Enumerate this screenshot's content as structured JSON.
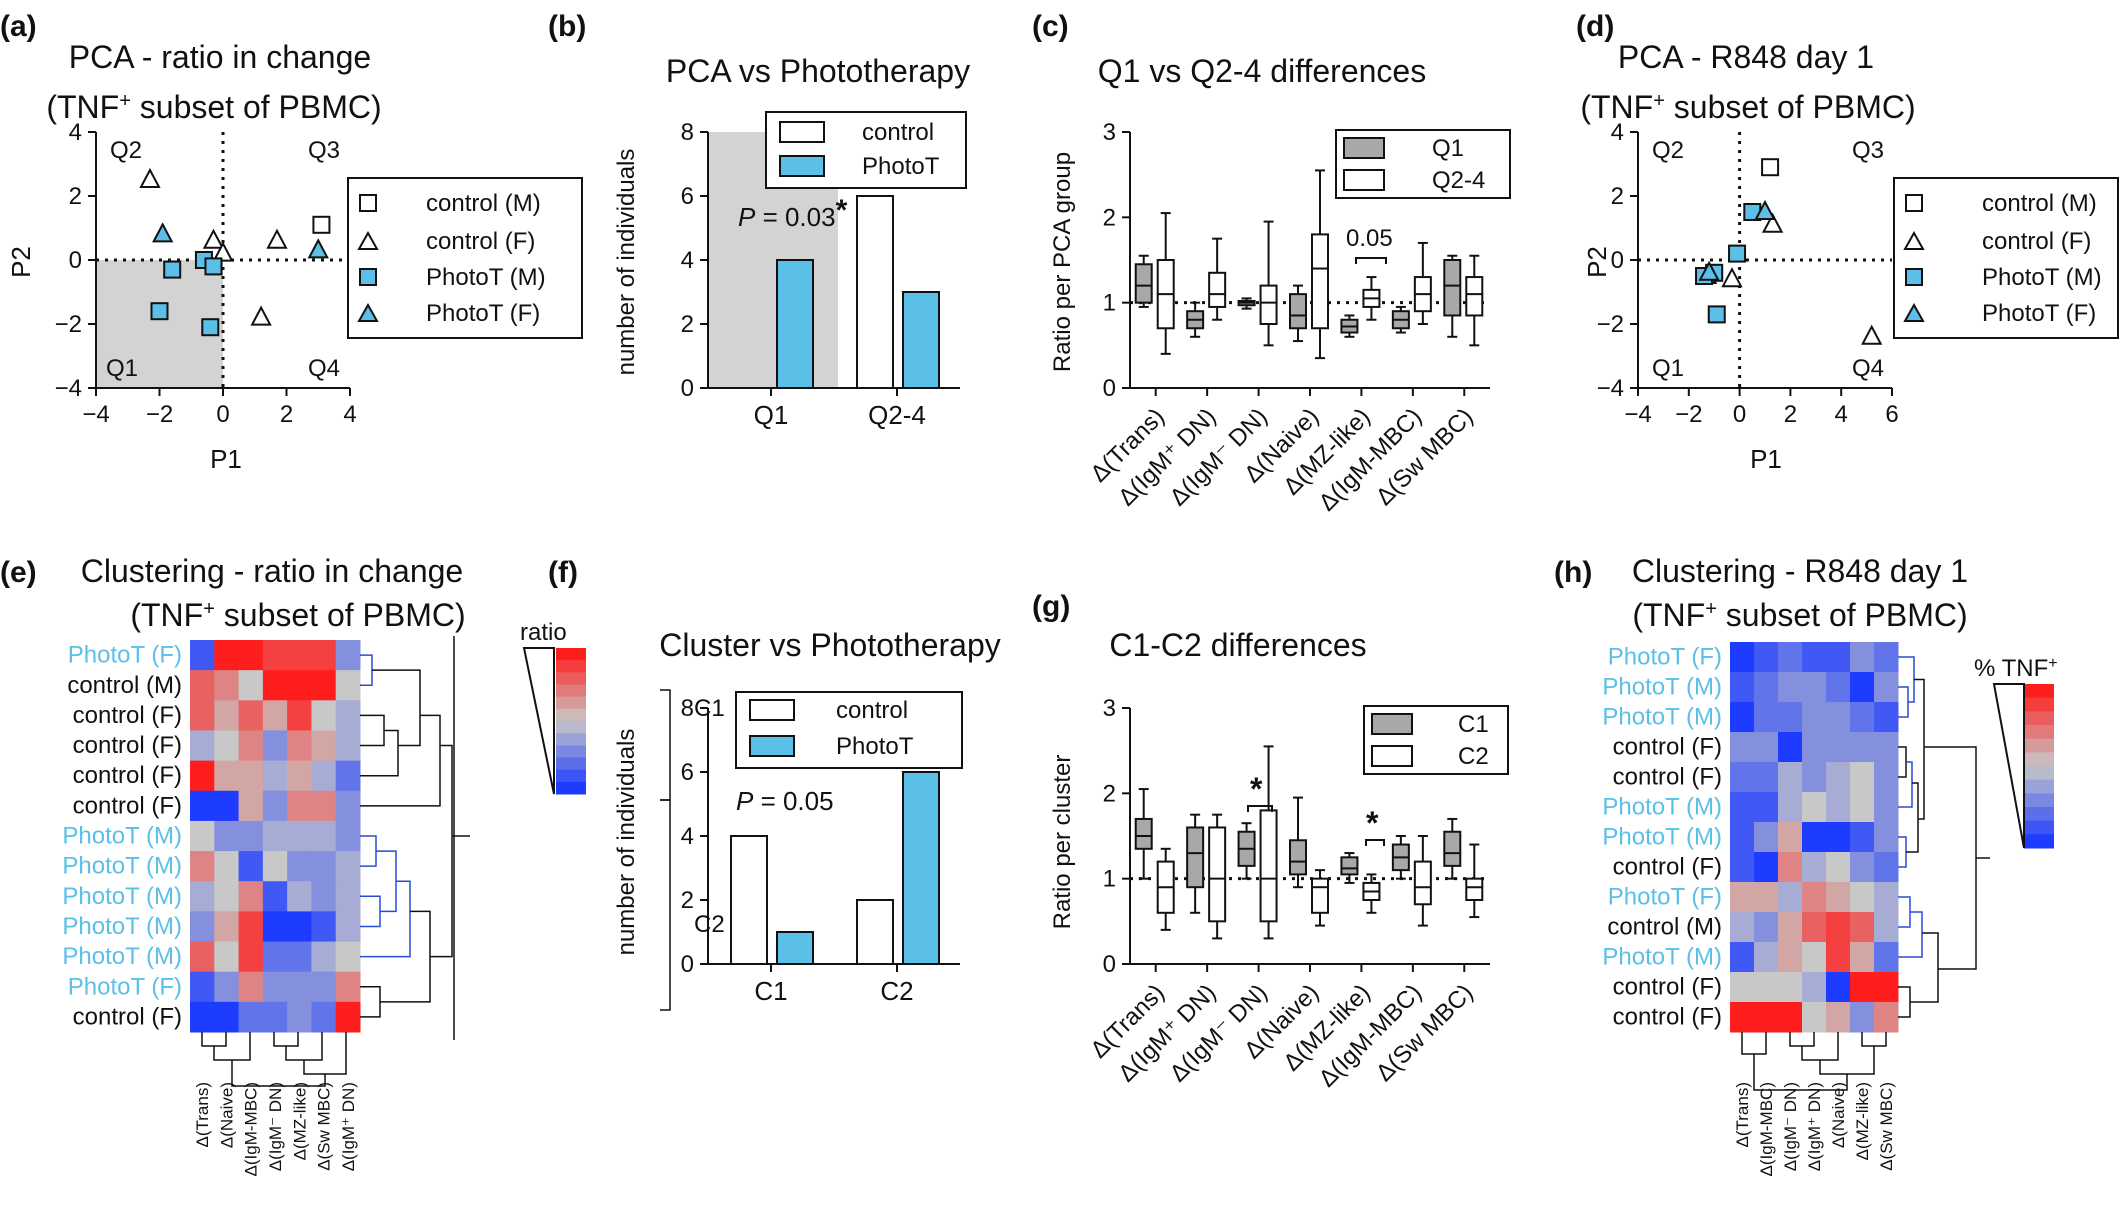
{
  "colors": {
    "photo": "#5bbfe8",
    "grey": "#a8a8a8",
    "shade": "#d3d3d3",
    "hot": "#ff1e1e",
    "cold": "#1e3cff",
    "mid": "#c8c8c8"
  },
  "panels": {
    "a": {
      "letter": "(a)",
      "title1": "PCA - ratio in change",
      "title2": "(TNF",
      "title2sup": "+",
      "title2end": " subset of PBMC)",
      "xlabel": "P1",
      "ylabel": "P2",
      "xticks": [
        "−4",
        "−2",
        "0",
        "2",
        "4"
      ],
      "yticks": [
        "4",
        "2",
        "0",
        "−2",
        "−4"
      ],
      "q": [
        "Q2",
        "Q3",
        "Q1",
        "Q4"
      ],
      "legend": [
        "control (M)",
        "control (F)",
        "PhotoT (M)",
        "PhotoT (F)"
      ]
    },
    "b": {
      "letter": "(b)",
      "title": "PCA vs Phototherapy",
      "ylabel": "number of individuals",
      "yticks": [
        "8",
        "6",
        "4",
        "2",
        "0"
      ],
      "legend": [
        "control",
        "PhotoT"
      ],
      "p_label": "P",
      "p_value": " = 0.03",
      "star": "*",
      "cats": [
        "Q1",
        "Q2-4"
      ]
    },
    "c": {
      "letter": "(c)",
      "title": "Q1 vs Q2-4 differences",
      "ylabel": "Ratio per PCA group",
      "yticks": [
        "3",
        "2",
        "1",
        "0"
      ],
      "legend": [
        "Q1",
        "Q2-4"
      ],
      "note": "0.05"
    },
    "d": {
      "letter": "(d)",
      "title1": "PCA - R848 day 1",
      "title2": "(TNF",
      "title2sup": "+",
      "title2end": " subset of PBMC)",
      "xlabel": "P1",
      "ylabel": "P2",
      "xticks": [
        "−4",
        "−2",
        "0",
        "2",
        "4",
        "6"
      ],
      "yticks": [
        "4",
        "2",
        "0",
        "−2",
        "−4"
      ],
      "q": [
        "Q2",
        "Q3",
        "Q1",
        "Q4"
      ],
      "legend": [
        "control (M)",
        "control (F)",
        "PhotoT (M)",
        "PhotoT (F)"
      ]
    },
    "e": {
      "letter": "(e)",
      "title1": "Clustering - ratio in change",
      "title2": "(TNF",
      "title2sup": "+",
      "title2end": " subset of PBMC)",
      "scale_label": "ratio",
      "rows": [
        "PhotoT (F)",
        "control (M)",
        "control (F)",
        "control (F)",
        "control (F)",
        "control (F)",
        "PhotoT (M)",
        "PhotoT (M)",
        "PhotoT (M)",
        "PhotoT (M)",
        "PhotoT (M)",
        "PhotoT (F)",
        "control (F)"
      ],
      "cols": [
        "Δ(Trans)",
        "Δ(Naive)",
        "Δ(IgM-MBC)",
        "Δ(IgM⁻ DN)",
        "Δ(MZ-like)",
        "Δ(Sw MBC)",
        "Δ(IgM⁺ DN)"
      ],
      "clusters": [
        "C1",
        "C2"
      ]
    },
    "f": {
      "letter": "(f)",
      "title": "Cluster vs Phototherapy",
      "ylabel": "number of individuals",
      "yticks": [
        "8",
        "6",
        "4",
        "2",
        "0"
      ],
      "legend": [
        "control",
        "PhotoT"
      ],
      "p_label": "P",
      "p_value": " = 0.05",
      "cats": [
        "C1",
        "C2"
      ]
    },
    "g": {
      "letter": "(g)",
      "title": "C1-C2 differences",
      "ylabel": "Ratio per cluster",
      "yticks": [
        "3",
        "2",
        "1",
        "0"
      ],
      "legend": [
        "C1",
        "C2"
      ],
      "star": "*"
    },
    "h": {
      "letter": "(h)",
      "title1": "Clustering - R848 day 1",
      "title2": "(TNF",
      "title2sup": "+",
      "title2end": " subset of PBMC)",
      "scale_label": "% TNF",
      "scale_sup": "+",
      "rows": [
        "PhotoT (F)",
        "PhotoT (M)",
        "PhotoT (M)",
        "control (F)",
        "control (F)",
        "PhotoT (M)",
        "PhotoT (M)",
        "control (F)",
        "PhotoT (F)",
        "control (M)",
        "PhotoT (M)",
        "control (F)",
        "control (F)"
      ],
      "cols": [
        "Δ(Trans)",
        "Δ(IgM-MBC)",
        "Δ(IgM⁻ DN)",
        "Δ(IgM⁺ DN)",
        "Δ(Naive)",
        "Δ(MZ-like)",
        "Δ(Sw MBC)"
      ]
    }
  },
  "box_categories": [
    "Δ(Trans)",
    "Δ(IgM⁺ DN)",
    "Δ(IgM⁻ DN)",
    "Δ(Naive)",
    "Δ(MZ-like)",
    "Δ(IgM-MBC)",
    "Δ(Sw MBC)"
  ],
  "chart_data": [
    {
      "panel": "a",
      "type": "scatter",
      "xlim": [
        -4,
        4
      ],
      "ylim": [
        -4,
        4
      ],
      "series": [
        {
          "name": "control (M)",
          "marker": "square-open",
          "points": [
            [
              3.1,
              1.1
            ]
          ]
        },
        {
          "name": "control (F)",
          "marker": "triangle-open",
          "points": [
            [
              -2.3,
              2.5
            ],
            [
              -0.3,
              0.6
            ],
            [
              0,
              0.2
            ],
            [
              1.7,
              0.6
            ],
            [
              1.2,
              -1.8
            ]
          ]
        },
        {
          "name": "PhotoT (M)",
          "marker": "square-filled",
          "points": [
            [
              -0.6,
              0
            ],
            [
              -1.6,
              -0.3
            ],
            [
              -0.3,
              -0.2
            ],
            [
              -2.0,
              -1.6
            ],
            [
              -0.4,
              -2.1
            ]
          ]
        },
        {
          "name": "PhotoT (F)",
          "marker": "triangle-filled",
          "points": [
            [
              -1.9,
              0.8
            ],
            [
              3.0,
              0.3
            ]
          ]
        }
      ]
    },
    {
      "panel": "b",
      "type": "bar",
      "categories": [
        "Q1",
        "Q2-4"
      ],
      "ylim": [
        0,
        8
      ],
      "series": [
        {
          "name": "control",
          "values": [
            0,
            6
          ]
        },
        {
          "name": "PhotoT",
          "values": [
            4,
            3
          ]
        }
      ]
    },
    {
      "panel": "c",
      "type": "box",
      "ylim": [
        0,
        3
      ],
      "categories": [
        "Δ(Trans)",
        "Δ(IgM⁺ DN)",
        "Δ(IgM⁻ DN)",
        "Δ(Naive)",
        "Δ(MZ-like)",
        "Δ(IgM-MBC)",
        "Δ(Sw MBC)"
      ],
      "series": [
        {
          "name": "Q1",
          "boxes": [
            [
              0.95,
              1.0,
              1.2,
              1.45,
              1.55
            ],
            [
              0.6,
              0.7,
              0.8,
              0.9,
              1.0
            ],
            [
              0.93,
              0.97,
              1.0,
              1.02,
              1.05
            ],
            [
              0.55,
              0.7,
              0.85,
              1.1,
              1.2
            ],
            [
              0.6,
              0.65,
              0.72,
              0.8,
              0.85
            ],
            [
              0.65,
              0.7,
              0.8,
              0.9,
              0.95
            ],
            [
              0.6,
              0.85,
              1.2,
              1.5,
              1.55
            ]
          ]
        },
        {
          "name": "Q2-4",
          "boxes": [
            [
              0.4,
              0.7,
              1.1,
              1.5,
              2.05
            ],
            [
              0.8,
              0.95,
              1.1,
              1.35,
              1.75
            ],
            [
              0.5,
              0.75,
              1.0,
              1.2,
              1.95
            ],
            [
              0.35,
              0.7,
              1.4,
              1.8,
              2.55
            ],
            [
              0.8,
              0.95,
              1.05,
              1.15,
              1.3
            ],
            [
              0.75,
              0.9,
              1.1,
              1.3,
              1.7
            ],
            [
              0.5,
              0.85,
              1.1,
              1.3,
              1.55
            ]
          ]
        }
      ]
    },
    {
      "panel": "d",
      "type": "scatter",
      "xlim": [
        -4,
        6
      ],
      "ylim": [
        -4,
        4
      ],
      "series": [
        {
          "name": "control (M)",
          "marker": "square-open",
          "points": [
            [
              1.2,
              2.9
            ]
          ]
        },
        {
          "name": "control (F)",
          "marker": "triangle-open",
          "points": [
            [
              1.3,
              1.1
            ],
            [
              -0.3,
              -0.6
            ],
            [
              -1.3,
              -0.5
            ],
            [
              5.2,
              -2.4
            ]
          ]
        },
        {
          "name": "PhotoT (M)",
          "marker": "square-filled",
          "points": [
            [
              0.5,
              1.5
            ],
            [
              -0.1,
              0.2
            ],
            [
              -1.0,
              -0.4
            ],
            [
              -1.4,
              -0.5
            ],
            [
              -0.9,
              -1.7
            ]
          ]
        },
        {
          "name": "PhotoT (F)",
          "marker": "triangle-filled",
          "points": [
            [
              1.0,
              1.5
            ],
            [
              -1.2,
              -0.4
            ]
          ]
        }
      ]
    },
    {
      "panel": "e",
      "type": "heatmap",
      "rows": 13,
      "cols": 7,
      "values": [
        [
          0.1,
          1.0,
          1.0,
          0.9,
          0.9,
          0.9,
          0.3
        ],
        [
          0.8,
          0.7,
          0.5,
          1.0,
          1.0,
          1.0,
          0.5
        ],
        [
          0.8,
          0.6,
          0.8,
          0.6,
          0.9,
          0.5,
          0.4
        ],
        [
          0.4,
          0.5,
          0.7,
          0.3,
          0.7,
          0.6,
          0.4
        ],
        [
          1.0,
          0.6,
          0.6,
          0.4,
          0.6,
          0.4,
          0.2
        ],
        [
          0.0,
          0.0,
          0.6,
          0.3,
          0.7,
          0.7,
          0.3
        ],
        [
          0.5,
          0.3,
          0.3,
          0.4,
          0.4,
          0.4,
          0.3
        ],
        [
          0.7,
          0.5,
          0.1,
          0.5,
          0.3,
          0.3,
          0.4
        ],
        [
          0.4,
          0.5,
          0.7,
          0.1,
          0.4,
          0.3,
          0.4
        ],
        [
          0.3,
          0.6,
          0.9,
          0.0,
          0.0,
          0.1,
          0.4
        ],
        [
          0.8,
          0.5,
          0.9,
          0.2,
          0.2,
          0.4,
          0.5
        ],
        [
          0.1,
          0.3,
          0.7,
          0.3,
          0.3,
          0.3,
          0.7
        ],
        [
          0.0,
          0.0,
          0.2,
          0.2,
          0.3,
          0.2,
          1.0
        ]
      ]
    },
    {
      "panel": "f",
      "type": "bar",
      "categories": [
        "C1",
        "C2"
      ],
      "ylim": [
        0,
        8
      ],
      "series": [
        {
          "name": "control",
          "values": [
            4,
            2
          ]
        },
        {
          "name": "PhotoT",
          "values": [
            1,
            6
          ]
        }
      ]
    },
    {
      "panel": "g",
      "type": "box",
      "ylim": [
        0,
        3
      ],
      "categories": [
        "Δ(Trans)",
        "Δ(IgM⁺ DN)",
        "Δ(IgM⁻ DN)",
        "Δ(Naive)",
        "Δ(MZ-like)",
        "Δ(IgM-MBC)",
        "Δ(Sw MBC)"
      ],
      "series": [
        {
          "name": "C1",
          "boxes": [
            [
              1.0,
              1.35,
              1.5,
              1.7,
              2.05
            ],
            [
              0.6,
              0.9,
              1.3,
              1.6,
              1.75
            ],
            [
              1.0,
              1.15,
              1.35,
              1.55,
              1.65
            ],
            [
              0.9,
              1.05,
              1.2,
              1.45,
              1.95
            ],
            [
              0.95,
              1.05,
              1.12,
              1.25,
              1.3
            ],
            [
              1.0,
              1.1,
              1.25,
              1.4,
              1.5
            ],
            [
              1.0,
              1.15,
              1.3,
              1.55,
              1.7
            ]
          ]
        },
        {
          "name": "C2",
          "boxes": [
            [
              0.4,
              0.6,
              0.9,
              1.2,
              1.35
            ],
            [
              0.3,
              0.5,
              1.0,
              1.6,
              1.75
            ],
            [
              0.3,
              0.5,
              1.0,
              1.8,
              2.55
            ],
            [
              0.45,
              0.6,
              0.9,
              1.0,
              1.1
            ],
            [
              0.6,
              0.75,
              0.85,
              0.95,
              1.05
            ],
            [
              0.45,
              0.7,
              0.9,
              1.2,
              1.5
            ],
            [
              0.55,
              0.75,
              0.9,
              1.0,
              1.4
            ]
          ]
        }
      ]
    },
    {
      "panel": "h",
      "type": "heatmap",
      "rows": 13,
      "cols": 7,
      "values": [
        [
          0.0,
          0.1,
          0.2,
          0.1,
          0.1,
          0.3,
          0.2
        ],
        [
          0.1,
          0.2,
          0.3,
          0.3,
          0.2,
          0.0,
          0.3
        ],
        [
          0.0,
          0.2,
          0.2,
          0.3,
          0.3,
          0.2,
          0.1
        ],
        [
          0.3,
          0.3,
          0.0,
          0.3,
          0.3,
          0.3,
          0.3
        ],
        [
          0.2,
          0.2,
          0.4,
          0.3,
          0.4,
          0.5,
          0.3
        ],
        [
          0.1,
          0.1,
          0.4,
          0.5,
          0.4,
          0.5,
          0.3
        ],
        [
          0.1,
          0.3,
          0.6,
          0.0,
          0.0,
          0.1,
          0.3
        ],
        [
          0.1,
          0.0,
          0.7,
          0.4,
          0.5,
          0.3,
          0.2
        ],
        [
          0.6,
          0.6,
          0.4,
          0.7,
          0.6,
          0.5,
          0.4
        ],
        [
          0.4,
          0.3,
          0.6,
          0.8,
          0.9,
          0.8,
          0.4
        ],
        [
          0.1,
          0.4,
          0.6,
          0.5,
          0.9,
          0.6,
          0.2
        ],
        [
          0.5,
          0.5,
          0.5,
          0.4,
          0.0,
          1.0,
          1.0
        ],
        [
          1.0,
          1.0,
          1.0,
          0.5,
          0.6,
          0.3,
          0.7
        ]
      ]
    }
  ]
}
